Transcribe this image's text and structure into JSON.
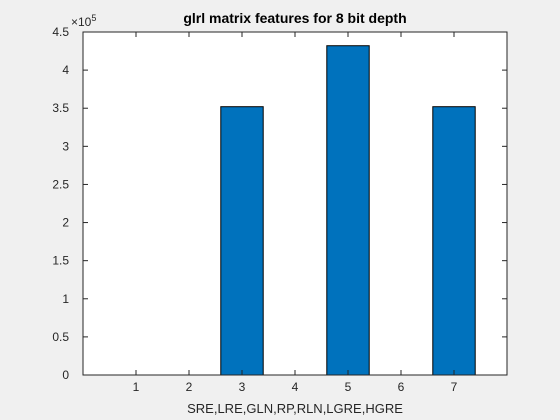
{
  "chart_data": {
    "type": "bar",
    "title": "glrl matrix features for 8 bit depth",
    "xlabel": "SRE,LRE,GLN,RP,RLN,LGRE,HGRE",
    "ylabel": "",
    "x": [
      1,
      2,
      3,
      4,
      5,
      6,
      7
    ],
    "values": [
      0,
      0,
      352000,
      0,
      432000,
      0,
      352000
    ],
    "xlim": [
      0,
      8
    ],
    "ylim": [
      0,
      450000
    ],
    "xticks": [
      1,
      2,
      3,
      4,
      5,
      6,
      7
    ],
    "yticks": [
      0,
      50000,
      100000,
      150000,
      200000,
      250000,
      300000,
      350000,
      400000,
      450000
    ],
    "ytick_labels": [
      "0",
      "0.5",
      "1",
      "1.5",
      "2",
      "2.5",
      "3",
      "3.5",
      "4",
      "4.5"
    ],
    "exponent_label": "×10",
    "exponent_power": "5",
    "grid": false,
    "bar_color": "#0072BD",
    "bar_edge_color": "#000000"
  }
}
